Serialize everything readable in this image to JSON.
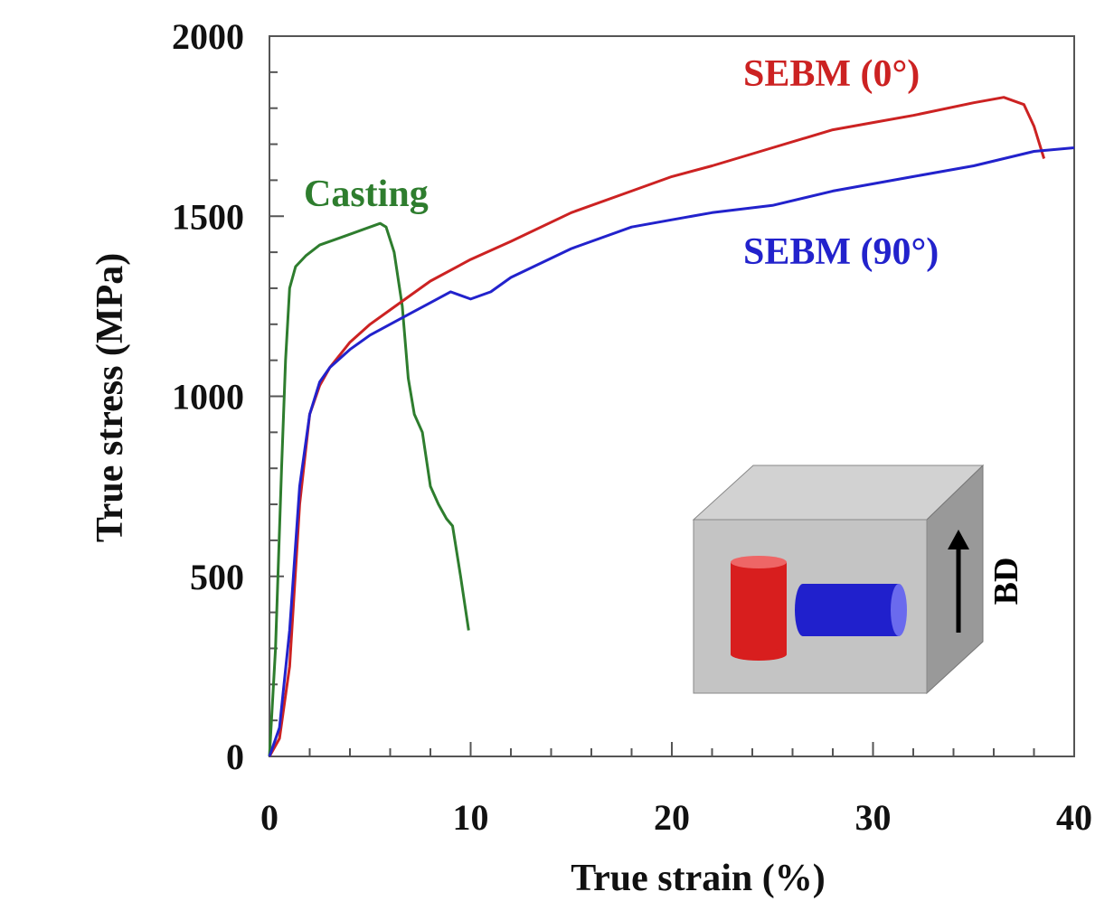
{
  "chart_data": {
    "type": "line",
    "title": "",
    "xlabel": "True strain (%)",
    "ylabel": "True stress (MPa)",
    "xlim": [
      0,
      40
    ],
    "ylim": [
      0,
      2000
    ],
    "xticks": [
      "0",
      "10",
      "20",
      "30",
      "40"
    ],
    "yticks": [
      "0",
      "500",
      "1000",
      "1500",
      "2000"
    ],
    "grid": false,
    "series": [
      {
        "name": "Casting",
        "color": "#2e7d2e",
        "x": [
          0,
          0.3,
          0.6,
          0.8,
          1.0,
          1.3,
          1.8,
          2.5,
          3.5,
          4.5,
          5.5,
          5.8,
          6.2,
          6.6,
          6.9,
          7.2,
          7.6,
          8.0,
          8.4,
          8.8,
          9.1,
          9.5,
          9.9
        ],
        "y": [
          0,
          300,
          800,
          1100,
          1300,
          1360,
          1390,
          1420,
          1440,
          1460,
          1480,
          1470,
          1400,
          1250,
          1050,
          950,
          900,
          750,
          700,
          660,
          640,
          500,
          350
        ]
      },
      {
        "name": "SEBM (0°)",
        "color": "#cc2222",
        "x": [
          0,
          0.5,
          1.0,
          1.5,
          2.0,
          2.5,
          3.0,
          4.0,
          5.0,
          6.0,
          7.0,
          8.0,
          10.0,
          12.0,
          15.0,
          18.0,
          20.0,
          22.0,
          25.0,
          28.0,
          30.0,
          32.0,
          35.0,
          36.5,
          37.5,
          38.0,
          38.5
        ],
        "y": [
          0,
          50,
          250,
          700,
          950,
          1030,
          1080,
          1150,
          1200,
          1240,
          1280,
          1320,
          1380,
          1430,
          1510,
          1570,
          1610,
          1640,
          1690,
          1740,
          1760,
          1780,
          1815,
          1830,
          1810,
          1750,
          1660
        ]
      },
      {
        "name": "SEBM (90°)",
        "color": "#2222cc",
        "x": [
          0,
          0.5,
          1.0,
          1.5,
          2.0,
          2.5,
          3.0,
          4.0,
          5.0,
          6.0,
          7.0,
          8.0,
          9.0,
          10.0,
          11.0,
          12.0,
          15.0,
          18.0,
          20.0,
          22.0,
          25.0,
          28.0,
          30.0,
          32.0,
          35.0,
          38.0,
          40.0
        ],
        "y": [
          0,
          80,
          350,
          750,
          950,
          1040,
          1080,
          1130,
          1170,
          1200,
          1230,
          1260,
          1290,
          1270,
          1290,
          1330,
          1410,
          1470,
          1490,
          1510,
          1530,
          1570,
          1590,
          1610,
          1640,
          1680,
          1690
        ]
      }
    ],
    "annotations": {
      "inset_label": "BD"
    }
  }
}
